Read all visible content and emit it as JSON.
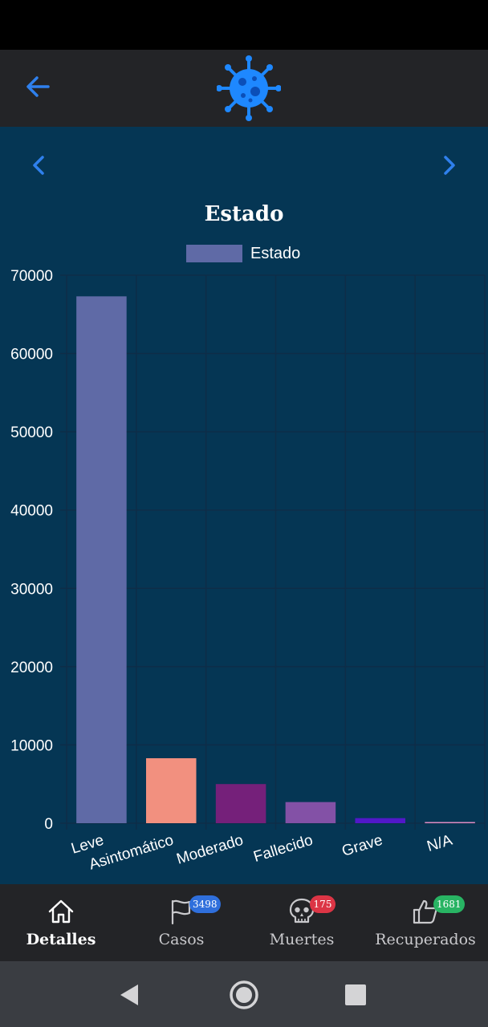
{
  "app": {
    "logo_icon": "virus-icon",
    "back_icon": "arrow-left-icon",
    "accent_color": "#2f80ed"
  },
  "pager": {
    "prev_icon": "chevron-left-icon",
    "next_icon": "chevron-right-icon"
  },
  "chart_data": {
    "type": "bar",
    "title": "Estado",
    "legend": {
      "label": "Estado",
      "position": "top-center",
      "color": "#5f6aa6"
    },
    "categories": [
      "Leve",
      "Asintomático",
      "Moderado",
      "Fallecido",
      "Grave",
      "N/A"
    ],
    "series": [
      {
        "name": "Estado",
        "values": [
          67300,
          8300,
          5000,
          2700,
          650,
          150
        ]
      }
    ],
    "colors": [
      "#5f6aa6",
      "#f2907f",
      "#75207a",
      "#8351a6",
      "#5118c8",
      "#e08dc3"
    ],
    "ylim": [
      0,
      70000
    ],
    "yticks": [
      0,
      10000,
      20000,
      30000,
      40000,
      50000,
      60000,
      70000
    ],
    "ytick_labels": [
      "0",
      "10000",
      "20000",
      "30000",
      "40000",
      "50000",
      "60000",
      "70000"
    ],
    "grid": true
  },
  "bottom_nav": {
    "items": [
      {
        "label": "Detalles",
        "icon": "home-icon",
        "active": true,
        "badge": null
      },
      {
        "label": "Casos",
        "icon": "flag-icon",
        "active": false,
        "badge": "3498",
        "badge_color": "#2f6fdc"
      },
      {
        "label": "Muertes",
        "icon": "skull-icon",
        "active": false,
        "badge": "175",
        "badge_color": "#dc3545"
      },
      {
        "label": "Recuperados",
        "icon": "thumbs-up-icon",
        "active": false,
        "badge": "1681",
        "badge_color": "#28b463"
      }
    ]
  },
  "system_nav": {
    "back_icon": "triangle-back-icon",
    "home_icon": "circle-home-icon",
    "recents_icon": "square-recents-icon"
  }
}
